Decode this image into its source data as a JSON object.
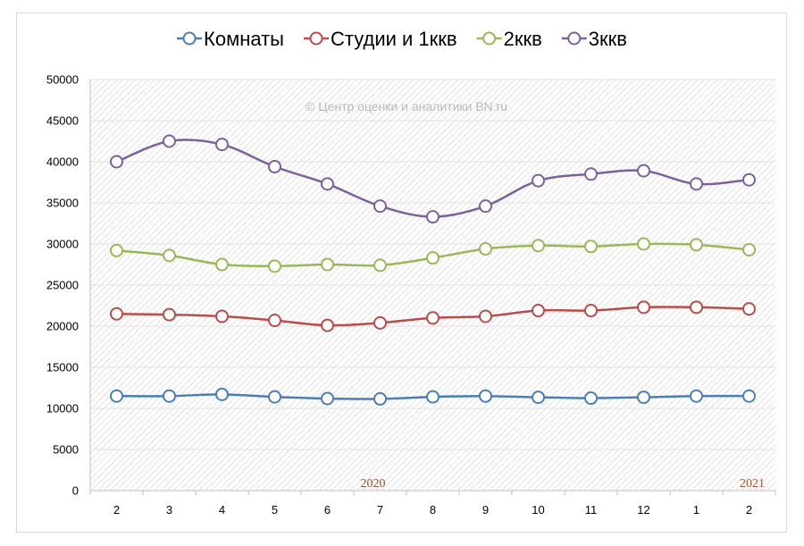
{
  "chart_data": {
    "type": "line",
    "title": "",
    "xlabel": "",
    "ylabel": "",
    "categories": [
      "2",
      "3",
      "4",
      "5",
      "6",
      "7",
      "8",
      "9",
      "10",
      "11",
      "12",
      "1",
      "2"
    ],
    "ylim": [
      0,
      50000
    ],
    "yticks": [
      "0",
      "5000",
      "10000",
      "15000",
      "20000",
      "25000",
      "30000",
      "35000",
      "40000",
      "45000",
      "50000"
    ],
    "legend_position": "top",
    "grid": true,
    "watermark": "© Центр оценки и аналитики BN.ru",
    "year_labels": [
      {
        "label": "2020",
        "at_category_index": 5
      },
      {
        "label": "2021",
        "at_category_index": 12
      }
    ],
    "series": [
      {
        "name": "Комнаты",
        "color": "#4a7ebb",
        "values": [
          11500,
          11500,
          11700,
          11400,
          11200,
          11150,
          11400,
          11500,
          11350,
          11250,
          11350,
          11500,
          11500
        ]
      },
      {
        "name": "Студии и 1ккв",
        "color": "#be4b48",
        "values": [
          21500,
          21400,
          21200,
          20700,
          20100,
          20400,
          21000,
          21200,
          21900,
          21900,
          22300,
          22300,
          22100
        ]
      },
      {
        "name": "2ккв",
        "color": "#98b954",
        "values": [
          29200,
          28600,
          27500,
          27300,
          27500,
          27400,
          28300,
          29400,
          29800,
          29700,
          30000,
          29900,
          29300
        ]
      },
      {
        "name": "3ккв",
        "color": "#7d60a0",
        "values": [
          40000,
          42500,
          42100,
          39400,
          37300,
          34600,
          33300,
          34600,
          37700,
          38500,
          38900,
          37300,
          37800
        ]
      }
    ]
  }
}
